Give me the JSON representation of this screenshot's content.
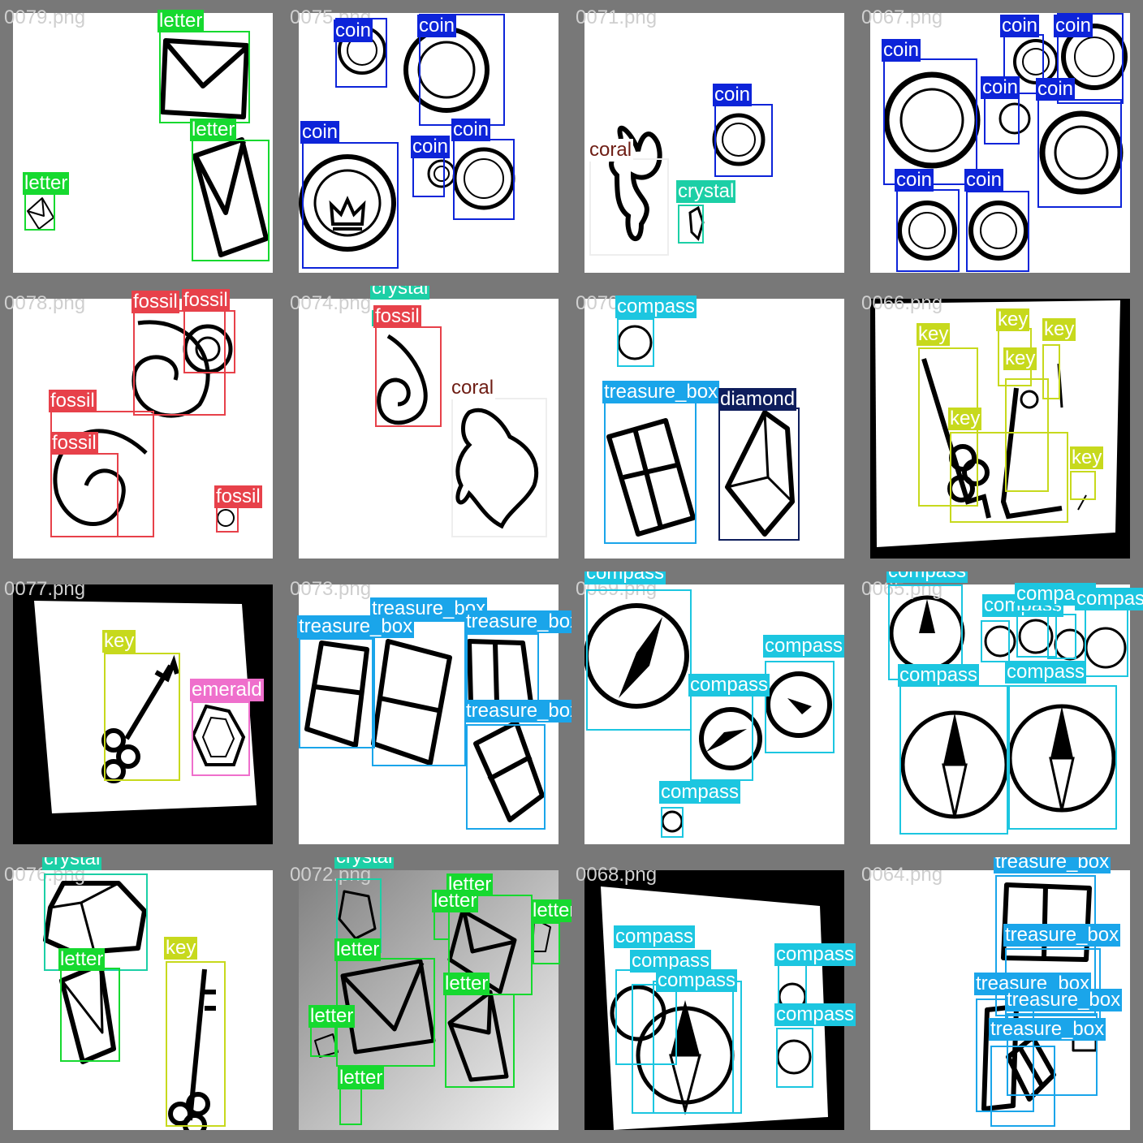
{
  "colors": {
    "letter": "#16d92f",
    "coin": "#0d24d9",
    "coral": "#6e1d14",
    "crystal": "#1ccfa6",
    "fossil": "#e7414a",
    "compass": "#1cc6e0",
    "treasure_box": "#1aa5ea",
    "diamond": "#0e1d5c",
    "key": "#c7d91d",
    "emerald": "#ef6fcc"
  },
  "tiles": [
    {
      "file": "0079.png",
      "labels": [
        "letter",
        "letter",
        "letter"
      ]
    },
    {
      "file": "0075.png",
      "labels": [
        "coin",
        "coin",
        "coin",
        "coin",
        "coin"
      ]
    },
    {
      "file": "0071.png",
      "labels": [
        "coin",
        "coral",
        "crystal"
      ]
    },
    {
      "file": "0067.png",
      "labels": [
        "coin",
        "coin",
        "coin",
        "coin",
        "coin",
        "coin",
        "coin"
      ]
    },
    {
      "file": "0078.png",
      "labels": [
        "fossil",
        "fossil",
        "fossil",
        "fossil",
        "fossil"
      ]
    },
    {
      "file": "0074.png",
      "labels": [
        "crystal",
        "fossil",
        "coral"
      ]
    },
    {
      "file": "0070.png",
      "labels": [
        "compass",
        "treasure_box",
        "diamond"
      ]
    },
    {
      "file": "0066.png",
      "labels": [
        "key",
        "key",
        "key",
        "key",
        "key",
        "key"
      ]
    },
    {
      "file": "0077.png",
      "labels": [
        "key",
        "emerald"
      ]
    },
    {
      "file": "0073.png",
      "labels": [
        "treasure_box",
        "treasure_box",
        "treasure_box",
        "treasure_box"
      ]
    },
    {
      "file": "0069.png",
      "labels": [
        "compass",
        "compass",
        "compass",
        "compass"
      ]
    },
    {
      "file": "0065.png",
      "labels": [
        "compass",
        "compass",
        "compass",
        "compass",
        "compass",
        "compass",
        "compass"
      ]
    },
    {
      "file": "0076.png",
      "labels": [
        "crystal",
        "letter",
        "key"
      ]
    },
    {
      "file": "0072.png",
      "labels": [
        "crystal",
        "letter",
        "letter",
        "letter",
        "letter",
        "letter",
        "letter",
        "letter"
      ]
    },
    {
      "file": "0068.png",
      "labels": [
        "compass",
        "compass",
        "compass",
        "compass",
        "compass"
      ]
    },
    {
      "file": "0064.png",
      "labels": [
        "treasure_box",
        "treasure_box",
        "treasure_box",
        "treasure_box",
        "treasure_box"
      ]
    }
  ]
}
